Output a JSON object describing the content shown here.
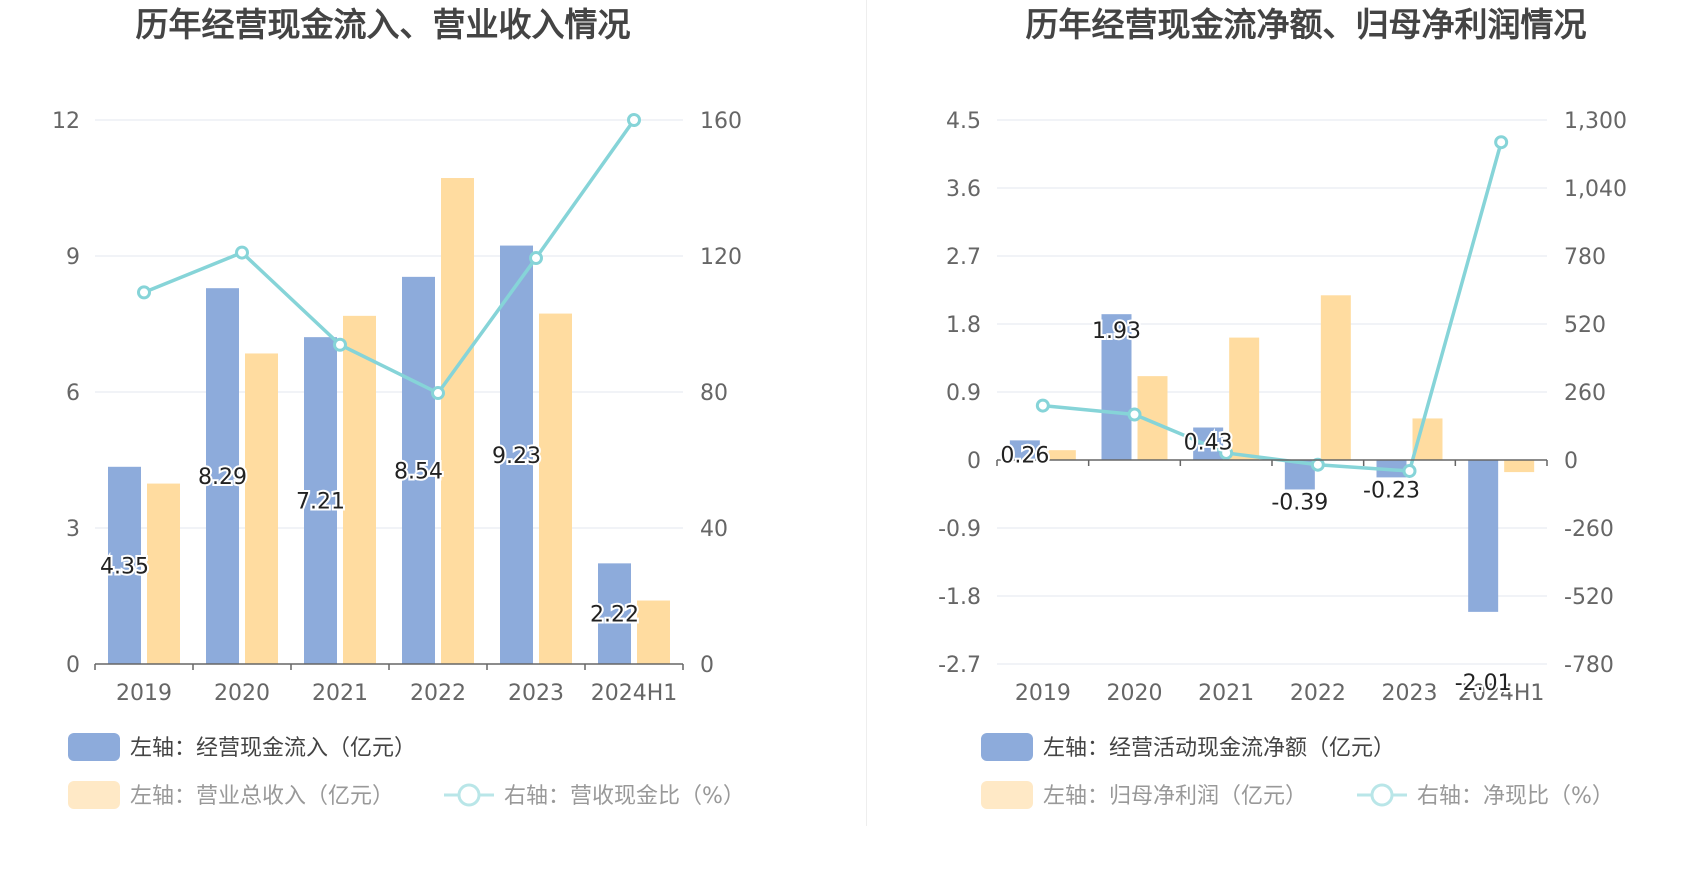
{
  "charts": [
    {
      "title": "历年经营现金流入、营业收入情况",
      "legend": [
        {
          "label": "左轴：经营现金流入（亿元）",
          "color": "#8dabdb",
          "kind": "bar"
        },
        {
          "label": "左轴：营业总收入（亿元）",
          "color": "#ffdca0",
          "kind": "bar"
        },
        {
          "label": "右轴：营收现金比（%）",
          "color": "#86d4d8",
          "kind": "line"
        }
      ],
      "chart_data": {
        "type": "bar+line",
        "categories": [
          "2019",
          "2020",
          "2021",
          "2022",
          "2023",
          "2024H1"
        ],
        "left_axis": {
          "ticks": [
            "0",
            "3",
            "6",
            "9",
            "12"
          ],
          "range": [
            0,
            12
          ]
        },
        "right_axis": {
          "ticks": [
            "0",
            "40",
            "80",
            "120",
            "160"
          ],
          "range": [
            0,
            160
          ]
        },
        "series": [
          {
            "name": "左轴：经营现金流入（亿元）",
            "axis": "left",
            "type": "bar",
            "color": "#8dabdb",
            "values": [
              4.35,
              8.29,
              7.21,
              8.54,
              9.23,
              2.22
            ],
            "labels": [
              "4.35",
              "8.29",
              "7.21",
              "8.54",
              "9.23",
              "2.22"
            ]
          },
          {
            "name": "左轴：营业总收入（亿元）",
            "axis": "left",
            "type": "bar",
            "color": "#ffdca0",
            "values": [
              3.98,
              6.85,
              7.68,
              10.72,
              7.73,
              1.4
            ]
          },
          {
            "name": "右轴：营收现金比（%）",
            "axis": "right",
            "type": "line",
            "color": "#86d4d8",
            "values": [
              109.3,
              121.0,
              93.9,
              79.7,
              119.4,
              160.0
            ]
          }
        ],
        "grid": true
      }
    },
    {
      "title": "历年经营现金流净额、归母净利润情况",
      "legend": [
        {
          "label": "左轴：经营活动现金流净额（亿元）",
          "color": "#8dabdb",
          "kind": "bar"
        },
        {
          "label": "左轴：归母净利润（亿元）",
          "color": "#ffdca0",
          "kind": "bar"
        },
        {
          "label": "右轴：净现比（%）",
          "color": "#86d4d8",
          "kind": "line"
        }
      ],
      "chart_data": {
        "type": "bar+line",
        "categories": [
          "2019",
          "2020",
          "2021",
          "2022",
          "2023",
          "2024H1"
        ],
        "left_axis": {
          "ticks": [
            "-2.7",
            "-1.8",
            "-0.9",
            "0",
            "0.9",
            "1.8",
            "2.7",
            "3.6",
            "4.5"
          ],
          "range": [
            -2.7,
            4.5
          ]
        },
        "right_axis": {
          "ticks": [
            "-780",
            "-520",
            "-260",
            "0",
            "260",
            "520",
            "780",
            "1,040",
            "1,300"
          ],
          "range": [
            -780,
            1300
          ]
        },
        "series": [
          {
            "name": "左轴：经营活动现金流净额（亿元）",
            "axis": "left",
            "type": "bar",
            "color": "#8dabdb",
            "values": [
              0.26,
              1.93,
              0.43,
              -0.39,
              -0.23,
              -2.01
            ],
            "labels": [
              "0.26",
              "1.93",
              "0.43",
              "-0.39",
              "-0.23",
              "-2.01"
            ]
          },
          {
            "name": "左轴：归母净利润（亿元）",
            "axis": "left",
            "type": "bar",
            "color": "#ffdca0",
            "values": [
              0.13,
              1.11,
              1.62,
              2.18,
              0.55,
              -0.16
            ]
          },
          {
            "name": "右轴：净现比（%）",
            "axis": "right",
            "type": "line",
            "color": "#86d4d8",
            "values": [
              208,
              174,
              27,
              -18,
              -42,
              1215
            ]
          }
        ],
        "grid": true
      }
    }
  ]
}
